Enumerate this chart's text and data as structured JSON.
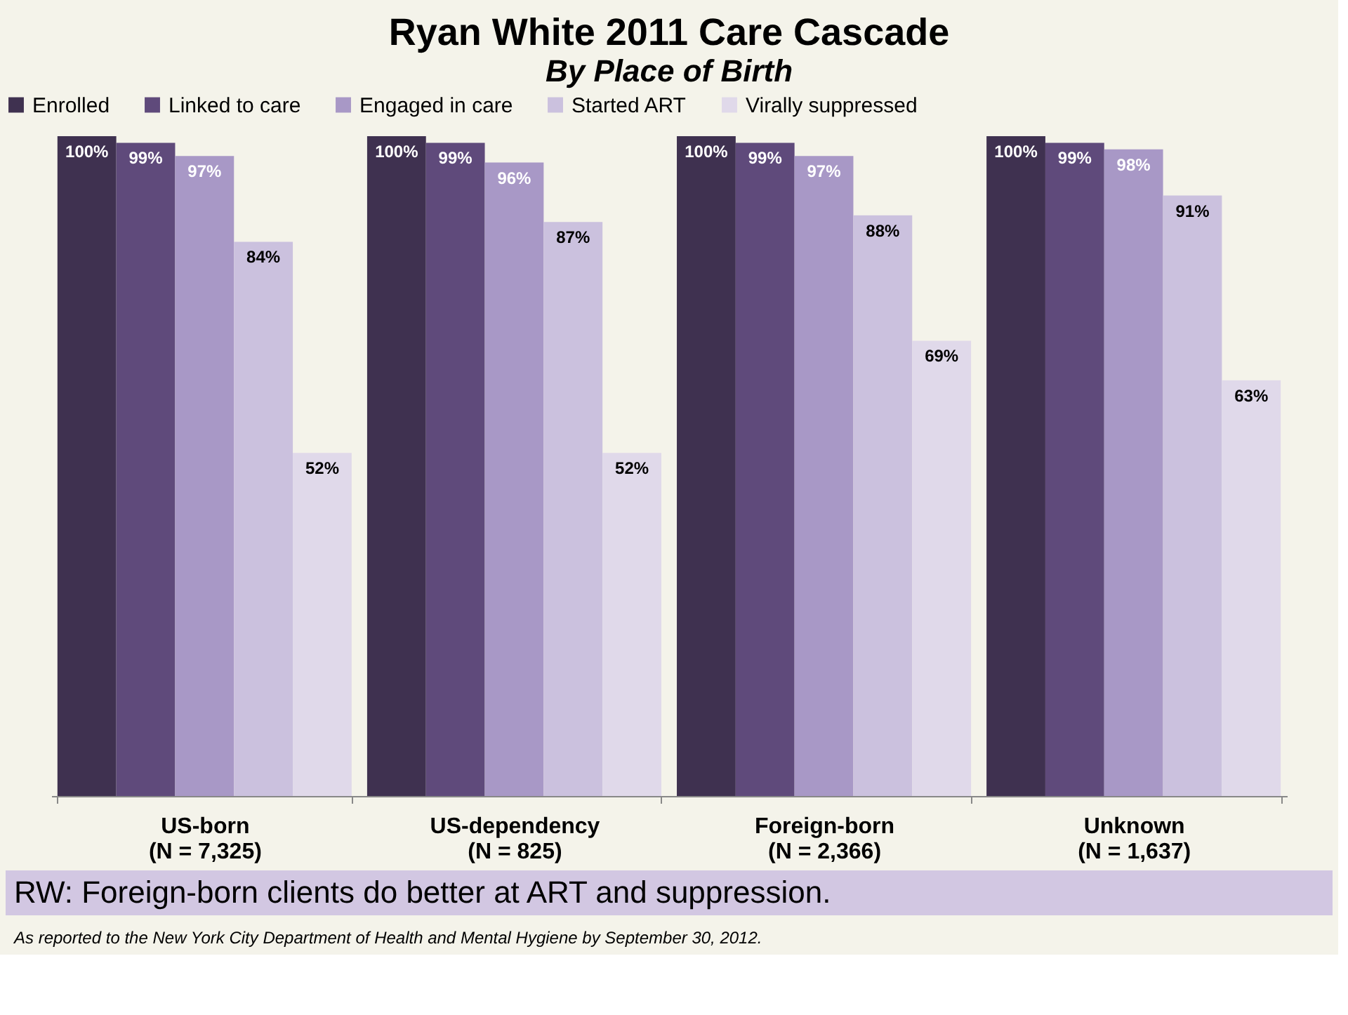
{
  "chart_data": {
    "type": "bar",
    "title": "Ryan White 2011 Care Cascade",
    "subtitle": "By Place of Birth",
    "categories": [
      "US-born\n(N = 7,325)",
      "US-dependency\n(N = 825)",
      "Foreign-born\n(N = 2,366)",
      "Unknown\n(N = 1,637)"
    ],
    "series": [
      {
        "name": "Enrolled",
        "color": "#3f3150",
        "values": [
          100,
          100,
          100,
          100
        ],
        "value_labels": [
          "100%",
          "100%",
          "100%",
          "100%"
        ]
      },
      {
        "name": "Linked to care",
        "color": "#5f4a7b",
        "values": [
          99,
          99,
          99,
          99
        ],
        "value_labels": [
          "99%",
          "99%",
          "99%",
          "99%"
        ]
      },
      {
        "name": "Engaged in care",
        "color": "#a898c6",
        "values": [
          97,
          96,
          97,
          98
        ],
        "value_labels": [
          "97%",
          "96%",
          "97%",
          "98%"
        ]
      },
      {
        "name": "Started ART",
        "color": "#cbc1de",
        "values": [
          84,
          87,
          88,
          91
        ],
        "value_labels": [
          "84%",
          "87%",
          "88%",
          "91%"
        ]
      },
      {
        "name": "Virally suppressed",
        "color": "#e0d9ea",
        "values": [
          52,
          52,
          69,
          63
        ],
        "value_labels": [
          "52%",
          "52%",
          "69%",
          "63%"
        ]
      }
    ],
    "legend": "top",
    "grid": false,
    "annotations": [
      "RW: Foreign-born clients do better at ART and suppression.",
      "As reported to the New York City Department of Health and Mental Hygiene by September 30, 2012."
    ]
  }
}
